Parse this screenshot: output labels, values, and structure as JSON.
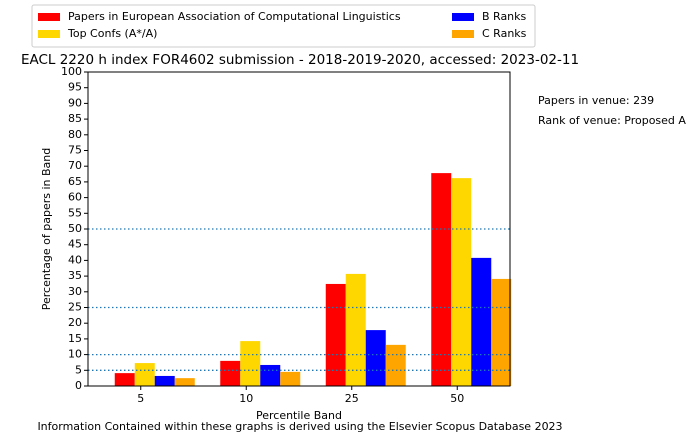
{
  "chart_data": {
    "type": "bar",
    "title": "EACL 2220 h index FOR4602 submission - 2018-2019-2020, accessed: 2023-02-11",
    "xlabel": "Percentile Band",
    "ylabel": "Percentage of papers in Band",
    "footer": "Information Contained within these graphs is derived using the Elsevier Scopus Database 2023",
    "annotations": [
      "Papers in venue: 239",
      "Rank of venue: Proposed A"
    ],
    "categories": [
      "5",
      "10",
      "25",
      "50"
    ],
    "series": [
      {
        "name": "Papers in European Association of Computational Linguistics",
        "color": "#ff0000",
        "values": [
          4.1,
          8.0,
          32.5,
          67.8
        ]
      },
      {
        "name": "Top Confs (A*/A)",
        "color": "#ffd700",
        "values": [
          7.3,
          14.3,
          35.7,
          66.2
        ]
      },
      {
        "name": "B Ranks",
        "color": "#0000ff",
        "values": [
          3.2,
          6.7,
          17.8,
          40.8
        ]
      },
      {
        "name": "C Ranks",
        "color": "#ffa500",
        "values": [
          2.5,
          4.5,
          13.1,
          34.1
        ]
      }
    ],
    "reference_lines": [
      5,
      10,
      25,
      50
    ],
    "reference_line_color": "#1f77b4",
    "ylim": [
      0,
      100
    ],
    "yticks": [
      0,
      5,
      10,
      15,
      20,
      25,
      30,
      35,
      40,
      45,
      50,
      55,
      60,
      65,
      70,
      75,
      80,
      85,
      90,
      95,
      100
    ],
    "legend": "top"
  }
}
